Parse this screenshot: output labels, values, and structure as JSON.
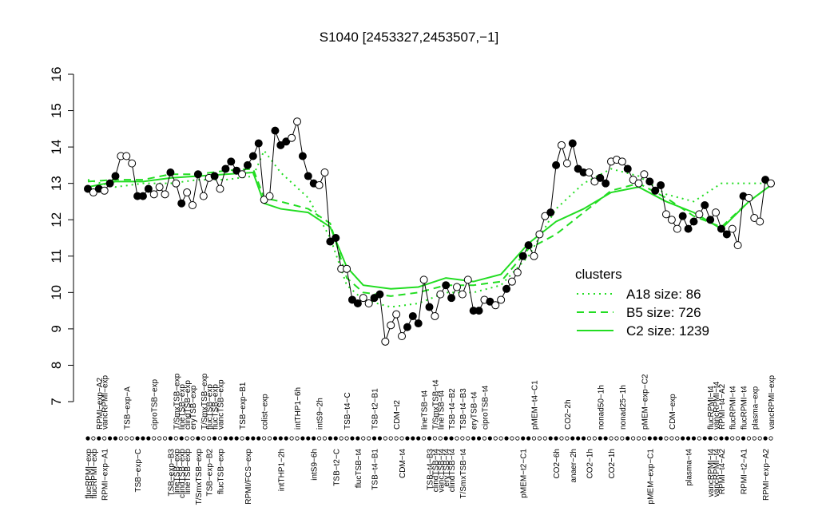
{
  "chart_data": {
    "type": "profile",
    "title": "S1040 [2453327,2453507,−1]",
    "ylim": [
      7,
      16
    ],
    "yticks": [
      7,
      8,
      9,
      10,
      11,
      12,
      13,
      14,
      15,
      16
    ],
    "points": {
      "color": "#000000",
      "values": [
        12.85,
        12.75,
        12.85,
        12.8,
        13.0,
        13.2,
        13.75,
        13.75,
        13.55,
        12.65,
        12.65,
        12.85,
        12.7,
        12.9,
        12.7,
        13.3,
        13.0,
        12.45,
        12.75,
        12.4,
        13.25,
        12.65,
        13.15,
        13.2,
        12.85,
        13.4,
        13.6,
        13.35,
        13.25,
        13.5,
        13.75,
        14.1,
        12.55,
        12.65,
        14.45,
        14.05,
        14.15,
        14.25,
        14.7,
        13.75,
        13.2,
        13.0,
        12.95,
        13.3,
        11.4,
        11.5,
        10.65,
        10.65,
        9.8,
        9.7,
        9.85,
        9.7,
        9.85,
        9.95,
        8.65,
        9.1,
        9.4,
        8.8,
        9.05,
        9.35,
        9.15,
        10.35,
        9.6,
        9.35,
        9.95,
        10.2,
        9.85,
        10.15,
        9.95,
        10.35,
        9.5,
        9.5,
        9.8,
        9.75,
        9.65,
        9.8,
        10.1,
        10.3,
        10.55,
        11.0,
        11.3,
        11.0,
        11.6,
        12.1,
        12.2,
        13.5,
        14.05,
        13.55,
        14.1,
        13.4,
        13.3,
        13.3,
        13.05,
        13.15,
        13.0,
        13.6,
        13.65,
        13.6,
        13.4,
        13.1,
        13.0,
        13.25,
        13.05,
        12.8,
        12.95,
        12.15,
        12.0,
        11.75,
        12.1,
        11.75,
        11.95,
        12.15,
        12.4,
        12.0,
        12.2,
        11.75,
        11.6,
        11.75,
        11.3,
        12.65,
        12.6,
        12.05,
        11.95,
        13.1,
        13.0
      ],
      "filled": [
        true,
        false,
        true,
        false,
        true,
        true,
        false,
        false,
        false,
        true,
        true,
        true,
        false,
        false,
        false,
        true,
        false,
        true,
        false,
        false,
        true,
        false,
        false,
        true,
        false,
        true,
        true,
        true,
        false,
        true,
        true,
        true,
        false,
        false,
        true,
        true,
        true,
        false,
        false,
        true,
        true,
        true,
        false,
        false,
        true,
        true,
        false,
        false,
        true,
        true,
        false,
        false,
        true,
        true,
        false,
        false,
        false,
        false,
        true,
        true,
        true,
        false,
        true,
        false,
        false,
        true,
        true,
        false,
        false,
        false,
        true,
        true,
        false,
        true,
        false,
        false,
        true,
        false,
        false,
        true,
        true,
        false,
        false,
        false,
        true,
        true,
        false,
        false,
        true,
        true,
        true,
        false,
        false,
        true,
        true,
        false,
        false,
        false,
        true,
        false,
        false,
        false,
        true,
        true,
        true,
        false,
        false,
        false,
        true,
        true,
        true,
        false,
        true,
        true,
        false,
        true,
        true,
        false,
        false,
        true,
        false,
        false,
        false,
        true,
        false
      ]
    },
    "bottom_labels": [
      {
        "x": 0,
        "label": "flucRPMI−exp"
      },
      {
        "x": 1,
        "label": "flucRPMI−exp"
      },
      {
        "x": 3,
        "label": "RPMI−exp−A1"
      },
      {
        "x": 9,
        "label": "TSB−exp−C"
      },
      {
        "x": 15,
        "label": "TSB−exp−B3"
      },
      {
        "x": 16,
        "label": "lineTSB−exp"
      },
      {
        "x": 17,
        "label": "clindTSB−exp"
      },
      {
        "x": 18,
        "label": "lineTSB−exp"
      },
      {
        "x": 20,
        "label": "T/SmxTSB−exp"
      },
      {
        "x": 22,
        "label": "TSB−exp−B2"
      },
      {
        "x": 24,
        "label": "flucTSB−exp"
      },
      {
        "x": 29,
        "label": "RPMI/FCS−exp"
      },
      {
        "x": 35,
        "label": "intTHP1−2h"
      },
      {
        "x": 41,
        "label": "intS9−6h"
      },
      {
        "x": 45,
        "label": "TSB−t2−C"
      },
      {
        "x": 49,
        "label": "flucTSB−t4"
      },
      {
        "x": 52,
        "label": "TSB−t4−B1"
      },
      {
        "x": 57,
        "label": "CDM−t4"
      },
      {
        "x": 62,
        "label": "TSB−t4−B3"
      },
      {
        "x": 63,
        "label": "clindTSB−t4"
      },
      {
        "x": 64,
        "label": "vancTSB−t4"
      },
      {
        "x": 65,
        "label": "eryTSB−t4"
      },
      {
        "x": 66,
        "label": "clindTSB−t4"
      },
      {
        "x": 68,
        "label": "T/SmxTSB−t4"
      },
      {
        "x": 79,
        "label": "pMEM−t2−C1"
      },
      {
        "x": 85,
        "label": "CO2−6h"
      },
      {
        "x": 88,
        "label": "anaer−2h"
      },
      {
        "x": 91,
        "label": "CO2−1h"
      },
      {
        "x": 95,
        "label": "CO2−1h"
      },
      {
        "x": 102,
        "label": "pMEM−exp−C1"
      },
      {
        "x": 109,
        "label": "plasma−t4"
      },
      {
        "x": 113,
        "label": "vancRPMI−t4"
      },
      {
        "x": 114,
        "label": "vancRPMI−t4"
      },
      {
        "x": 115,
        "label": "RPMI−t4−A2"
      },
      {
        "x": 119,
        "label": "RPMI−t2−A1"
      },
      {
        "x": 123,
        "label": "RPMI−exp−A2"
      }
    ],
    "top_labels": [
      {
        "x": 2,
        "label": "RPMI−exp−A2"
      },
      {
        "x": 3,
        "label": "vancRPMI−exp"
      },
      {
        "x": 7,
        "label": "TSB−exp−A"
      },
      {
        "x": 12,
        "label": "ciproTSB−exp"
      },
      {
        "x": 16,
        "label": "T/SmxTSB−exp"
      },
      {
        "x": 17,
        "label": "lineTSB−exp"
      },
      {
        "x": 18,
        "label": "clindTSB−exp"
      },
      {
        "x": 19,
        "label": "eryTSB−exp"
      },
      {
        "x": 21,
        "label": "T/SmxTSB−exp"
      },
      {
        "x": 22,
        "label": "flucTSB−exp"
      },
      {
        "x": 23,
        "label": "flucTSB−exp"
      },
      {
        "x": 24,
        "label": "vancTSB−exp"
      },
      {
        "x": 28,
        "label": "TSB−exp−B1"
      },
      {
        "x": 32,
        "label": "colist−exp"
      },
      {
        "x": 38,
        "label": "intTHP1−6h"
      },
      {
        "x": 42,
        "label": "intS9−2h"
      },
      {
        "x": 47,
        "label": "TSB−t4−C"
      },
      {
        "x": 52,
        "label": "TSB−t2−B1"
      },
      {
        "x": 56,
        "label": "CDM−t2"
      },
      {
        "x": 61,
        "label": "lineTSB−t4"
      },
      {
        "x": 63,
        "label": "T/SmxTSB−t4"
      },
      {
        "x": 64,
        "label": "lineTSB−t4"
      },
      {
        "x": 66,
        "label": "TSB−t4−B2"
      },
      {
        "x": 68,
        "label": "TSB−t4−B3"
      },
      {
        "x": 70,
        "label": "eryTSB−t4"
      },
      {
        "x": 72,
        "label": "ciproTSB−t4"
      },
      {
        "x": 81,
        "label": "pMEM−t4−C1"
      },
      {
        "x": 87,
        "label": "CO2−2h"
      },
      {
        "x": 93,
        "label": "nonad50−1h"
      },
      {
        "x": 97,
        "label": "nonad25−1h"
      },
      {
        "x": 101,
        "label": "pMEM−exp−C2"
      },
      {
        "x": 106,
        "label": "CDM−exp"
      },
      {
        "x": 113,
        "label": "flucRPMI−t4"
      },
      {
        "x": 114,
        "label": "vancRPMI−t4"
      },
      {
        "x": 115,
        "label": "RPMI−t4−A2"
      },
      {
        "x": 117,
        "label": "flucRPMI−t4"
      },
      {
        "x": 119,
        "label": "flucRPMI−t4"
      },
      {
        "x": 121,
        "label": "plasma−exp"
      },
      {
        "x": 124,
        "label": "vancRPMI−exp"
      }
    ],
    "legend": {
      "title": "clusters",
      "color": "#22dd22"
    },
    "series": [
      {
        "name": "A18 size: 86",
        "color": "#22dd22",
        "dash": "dotted",
        "x": [
          0,
          5,
          10,
          15,
          20,
          25,
          30,
          32,
          35,
          40,
          44,
          47,
          50,
          55,
          60,
          65,
          70,
          75,
          80,
          85,
          90,
          95,
          100,
          105,
          110,
          115,
          120,
          124
        ],
        "values": [
          13.1,
          12.9,
          13.0,
          13.0,
          13.1,
          13.1,
          13.2,
          13.9,
          13.3,
          12.6,
          11.5,
          10.2,
          9.8,
          9.6,
          9.7,
          10.0,
          10.0,
          10.2,
          11.0,
          12.3,
          13.0,
          13.4,
          13.2,
          12.7,
          12.5,
          13.0,
          13.0,
          13.0
        ]
      },
      {
        "name": "B5 size: 726",
        "color": "#22dd22",
        "dash": "dashed",
        "x": [
          0,
          5,
          10,
          15,
          20,
          25,
          30,
          32,
          35,
          40,
          44,
          47,
          50,
          55,
          60,
          65,
          70,
          75,
          80,
          85,
          90,
          95,
          100,
          105,
          110,
          115,
          120,
          124
        ],
        "values": [
          13.05,
          13.1,
          13.1,
          13.25,
          13.25,
          13.35,
          13.4,
          12.6,
          12.5,
          12.3,
          11.9,
          10.4,
          10.0,
          9.9,
          10.0,
          10.2,
          10.2,
          10.3,
          11.2,
          11.6,
          12.2,
          12.8,
          13.0,
          12.6,
          12.1,
          11.8,
          12.5,
          12.95
        ]
      },
      {
        "name": "C2 size: 1239",
        "color": "#22dd22",
        "dash": "solid",
        "x": [
          0,
          5,
          10,
          15,
          20,
          25,
          30,
          32,
          35,
          40,
          44,
          47,
          50,
          55,
          60,
          65,
          70,
          75,
          80,
          85,
          90,
          95,
          100,
          105,
          110,
          115,
          120,
          124
        ],
        "values": [
          12.9,
          13.05,
          13.05,
          13.15,
          13.2,
          13.25,
          13.3,
          12.45,
          12.3,
          12.2,
          11.8,
          10.7,
          10.2,
          10.1,
          10.15,
          10.4,
          10.3,
          10.5,
          11.35,
          11.95,
          12.3,
          12.75,
          12.9,
          12.5,
          12.2,
          11.75,
          12.5,
          12.95
        ]
      }
    ]
  }
}
